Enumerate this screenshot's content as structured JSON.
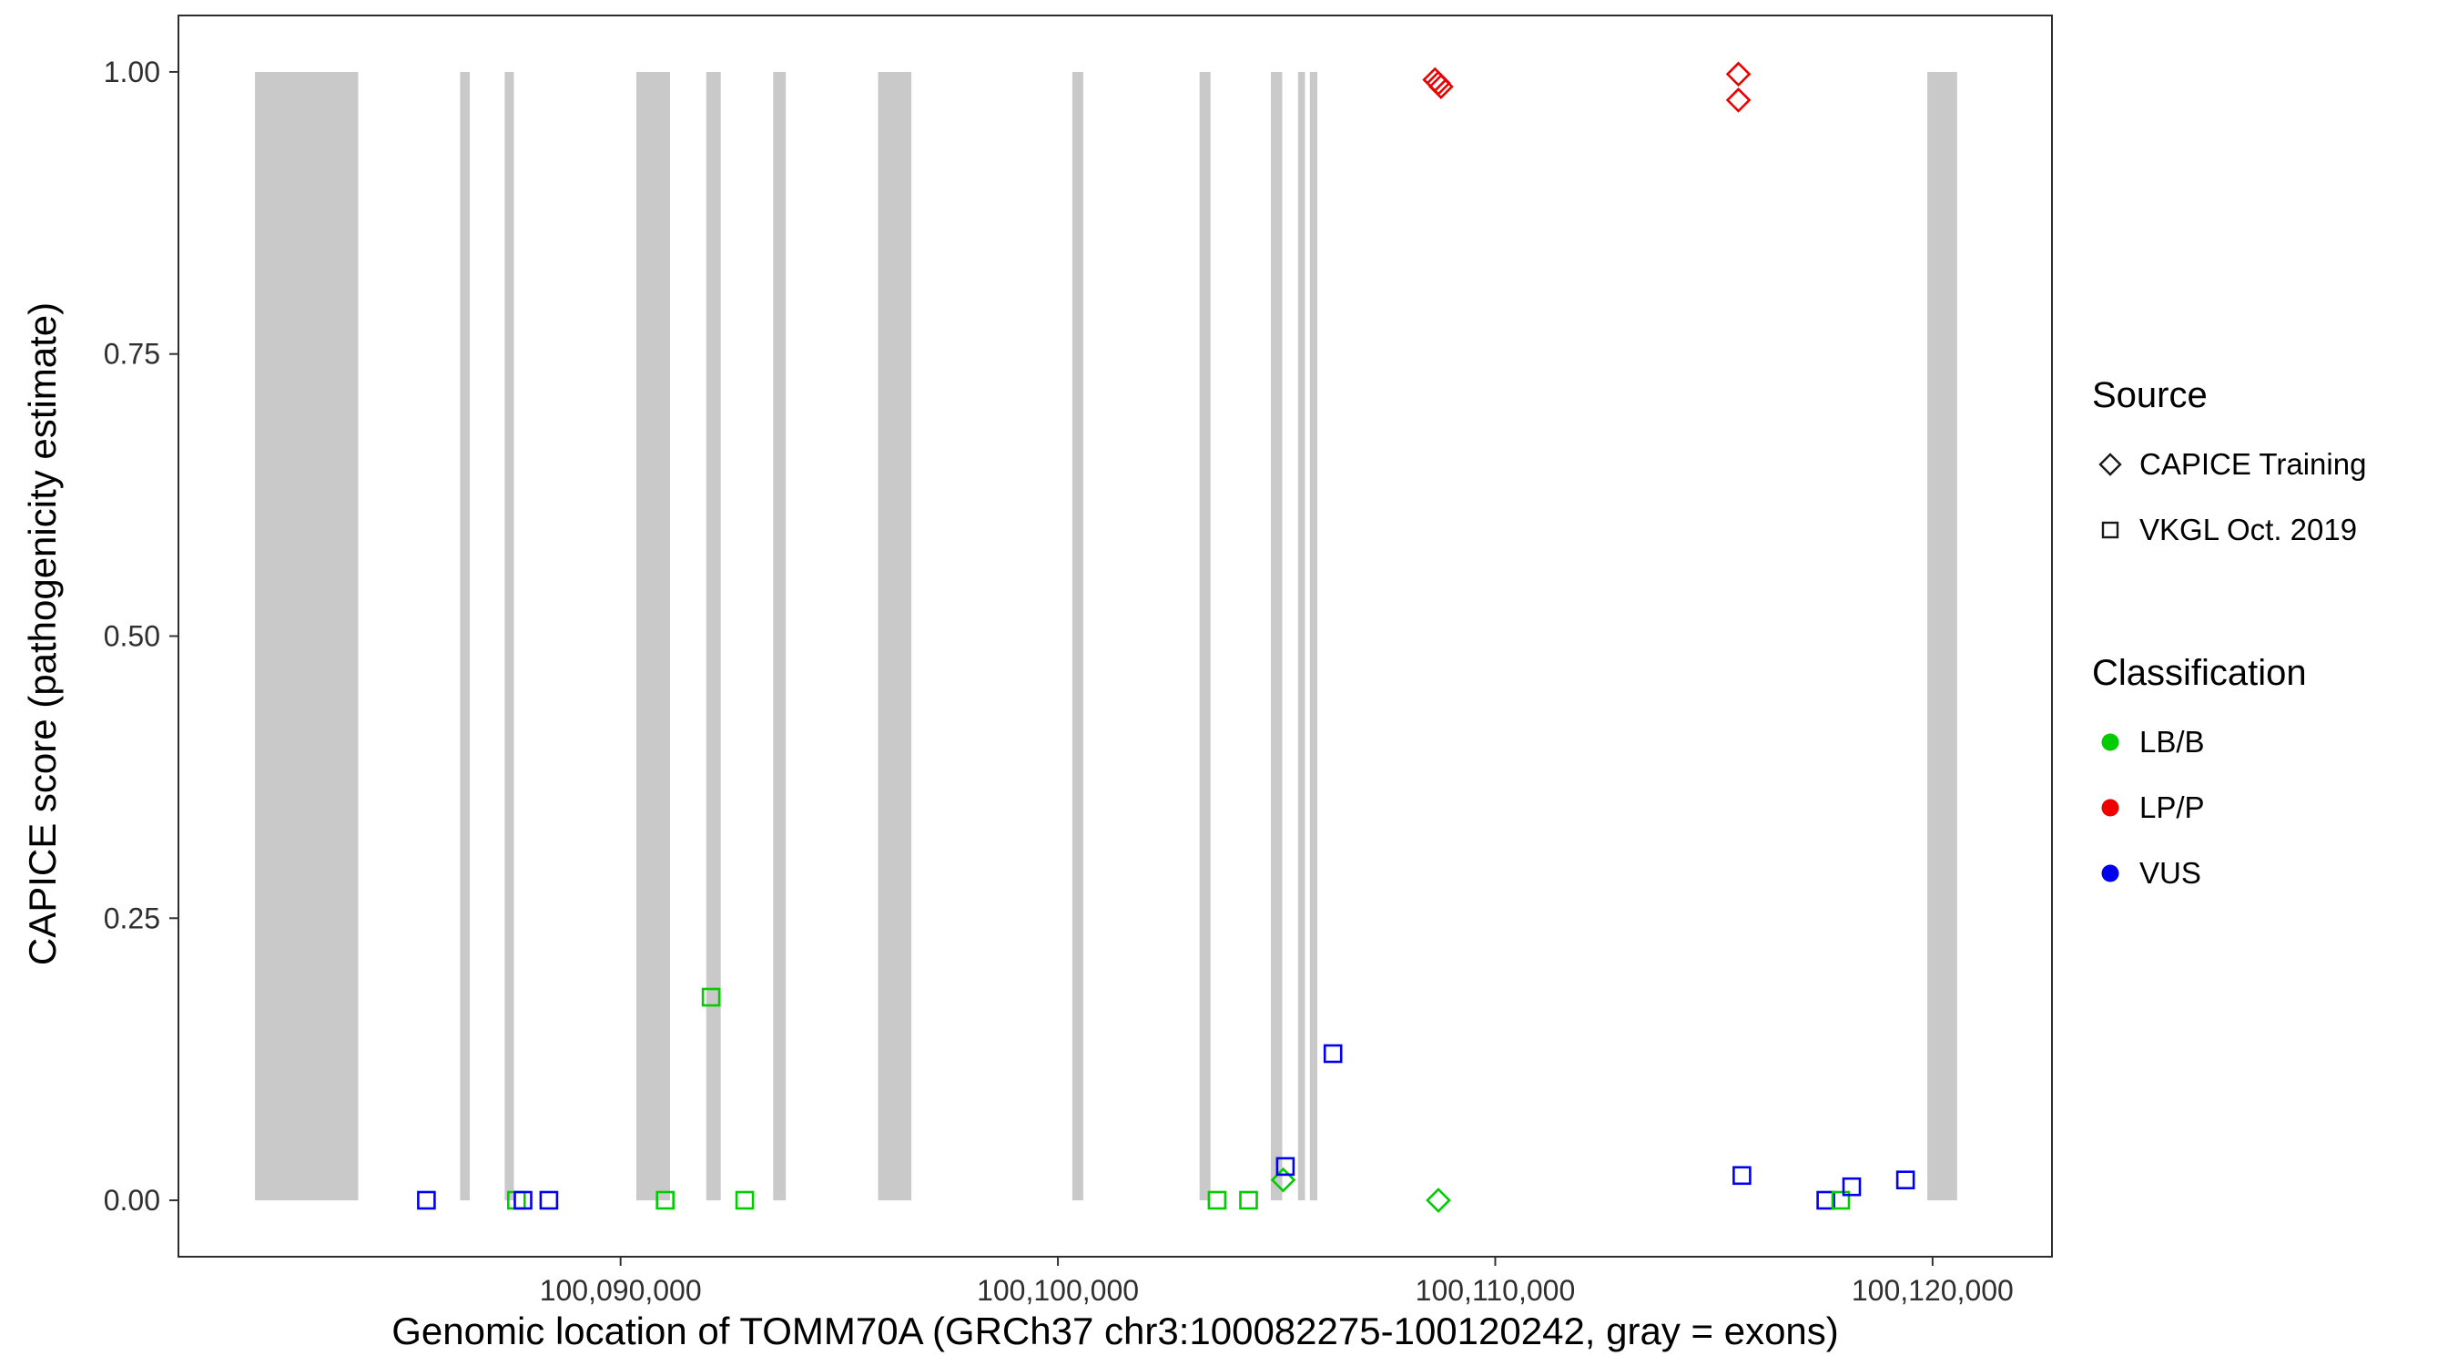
{
  "figure": {
    "background": "#FFFFFF",
    "panel_border": "#2D2D2D",
    "tick_color": "#333333",
    "tick_label_color": "#2F2F2F"
  },
  "axes": {
    "x_title": "Genomic location of TOMM70A (GRCh37 chr3:100082275-100120242, gray = exons)",
    "y_title": "CAPICE score (pathogenicity estimate)",
    "x_ticks": [
      {
        "value": 100090000,
        "label": "100,090,000"
      },
      {
        "value": 100100000,
        "label": "100,100,000"
      },
      {
        "value": 100110000,
        "label": "100,110,000"
      },
      {
        "value": 100120000,
        "label": "100,120,000"
      }
    ],
    "y_ticks": [
      {
        "value": 0.0,
        "label": "0.00"
      },
      {
        "value": 0.25,
        "label": "0.25"
      },
      {
        "value": 0.5,
        "label": "0.50"
      },
      {
        "value": 0.75,
        "label": "0.75"
      },
      {
        "value": 1.0,
        "label": "1.00"
      }
    ]
  },
  "legend": {
    "source": {
      "title": "Source",
      "items": [
        {
          "shape": "diamond",
          "label": "CAPICE Training"
        },
        {
          "shape": "square",
          "label": "VKGL Oct. 2019"
        }
      ]
    },
    "classification": {
      "title": "Classification",
      "items": [
        {
          "color": "#00CC00",
          "label": "LB/B"
        },
        {
          "color": "#EE0000",
          "label": "LP/P"
        },
        {
          "color": "#0000EE",
          "label": "VUS"
        }
      ]
    }
  },
  "chart_data": {
    "type": "scatter",
    "title": "",
    "xlabel": "Genomic location of TOMM70A (GRCh37 chr3:100082275-100120242, gray = exons)",
    "ylabel": "CAPICE score (pathogenicity estimate)",
    "xlim": [
      100079890,
      100122730
    ],
    "ylim": [
      -0.05,
      1.05
    ],
    "grid": false,
    "legend_position": "right",
    "exon_color": "#C9C9C9",
    "exons": [
      [
        100081640,
        100084000
      ],
      [
        100086330,
        100086550
      ],
      [
        100087350,
        100087560
      ],
      [
        100090360,
        100091130
      ],
      [
        100091960,
        100092290
      ],
      [
        100093490,
        100093780
      ],
      [
        100095890,
        100096650
      ],
      [
        100100330,
        100100580
      ],
      [
        100103240,
        100103490
      ],
      [
        100104870,
        100105130
      ],
      [
        100105490,
        100105650
      ],
      [
        100105760,
        100105930
      ],
      [
        100119880,
        100120560
      ]
    ],
    "class_colors": {
      "LB/B": "#00CC00",
      "LP/P": "#EE0000",
      "VUS": "#0000EE"
    },
    "points": [
      {
        "x": 100085560,
        "y": 0.0,
        "shape": "square",
        "source": "VKGL Oct. 2019",
        "class": "VUS"
      },
      {
        "x": 100087620,
        "y": 0.0,
        "shape": "square",
        "source": "VKGL Oct. 2019",
        "class": "LB/B"
      },
      {
        "x": 100087770,
        "y": 0.0,
        "shape": "square",
        "source": "VKGL Oct. 2019",
        "class": "VUS"
      },
      {
        "x": 100088360,
        "y": 0.0,
        "shape": "square",
        "source": "VKGL Oct. 2019",
        "class": "VUS"
      },
      {
        "x": 100091020,
        "y": 0.0,
        "shape": "square",
        "source": "VKGL Oct. 2019",
        "class": "LB/B"
      },
      {
        "x": 100092070,
        "y": 0.18,
        "shape": "square",
        "source": "VKGL Oct. 2019",
        "class": "LB/B"
      },
      {
        "x": 100092840,
        "y": 0.0,
        "shape": "square",
        "source": "VKGL Oct. 2019",
        "class": "LB/B"
      },
      {
        "x": 100103640,
        "y": 0.0,
        "shape": "square",
        "source": "VKGL Oct. 2019",
        "class": "LB/B"
      },
      {
        "x": 100104360,
        "y": 0.0,
        "shape": "square",
        "source": "VKGL Oct. 2019",
        "class": "LB/B"
      },
      {
        "x": 100105150,
        "y": 0.018,
        "shape": "diamond",
        "source": "CAPICE Training",
        "class": "LB/B"
      },
      {
        "x": 100105200,
        "y": 0.03,
        "shape": "square",
        "source": "VKGL Oct. 2019",
        "class": "VUS"
      },
      {
        "x": 100106290,
        "y": 0.13,
        "shape": "square",
        "source": "VKGL Oct. 2019",
        "class": "VUS"
      },
      {
        "x": 100108620,
        "y": 0.993,
        "shape": "diamond",
        "source": "CAPICE Training",
        "class": "LP/P"
      },
      {
        "x": 100108700,
        "y": 0.99,
        "shape": "diamond",
        "source": "CAPICE Training",
        "class": "LP/P"
      },
      {
        "x": 100108760,
        "y": 0.987,
        "shape": "diamond",
        "source": "CAPICE Training",
        "class": "LP/P"
      },
      {
        "x": 100108700,
        "y": 0.0,
        "shape": "diamond",
        "source": "CAPICE Training",
        "class": "LB/B"
      },
      {
        "x": 100115560,
        "y": 0.998,
        "shape": "diamond",
        "source": "CAPICE Training",
        "class": "LP/P"
      },
      {
        "x": 100115560,
        "y": 0.975,
        "shape": "diamond",
        "source": "CAPICE Training",
        "class": "LP/P"
      },
      {
        "x": 100115640,
        "y": 0.022,
        "shape": "square",
        "source": "VKGL Oct. 2019",
        "class": "VUS"
      },
      {
        "x": 100117560,
        "y": 0.0,
        "shape": "square",
        "source": "VKGL Oct. 2019",
        "class": "VUS"
      },
      {
        "x": 100117900,
        "y": 0.0,
        "shape": "square",
        "source": "VKGL Oct. 2019",
        "class": "LB/B"
      },
      {
        "x": 100118150,
        "y": 0.012,
        "shape": "square",
        "source": "VKGL Oct. 2019",
        "class": "VUS"
      },
      {
        "x": 100119380,
        "y": 0.018,
        "shape": "square",
        "source": "VKGL Oct. 2019",
        "class": "VUS"
      }
    ]
  }
}
